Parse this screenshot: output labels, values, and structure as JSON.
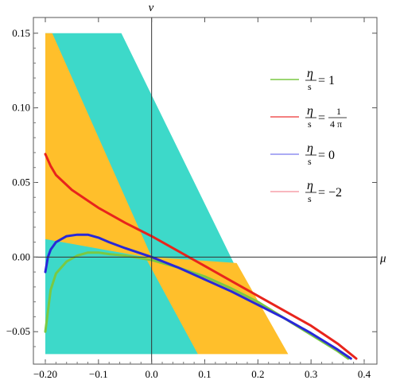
{
  "chart_data": {
    "type": "line",
    "xlabel": "μ",
    "ylabel": "ν",
    "xlim": [
      -0.2,
      0.4
    ],
    "ylim": [
      -0.068,
      0.152
    ],
    "x_ticks": [
      -0.2,
      -0.1,
      0.0,
      0.1,
      0.2,
      0.3,
      0.4
    ],
    "x_tick_labels": [
      "−0.20",
      "−0.1",
      "0.0",
      "0.1",
      "0.2",
      "0.3",
      "0.4"
    ],
    "y_ticks": [
      -0.05,
      0.0,
      0.05,
      0.1,
      0.15
    ],
    "y_tick_labels": [
      "−0.05",
      "0.00",
      "0.05",
      "0.10",
      "0.15"
    ],
    "grid": false,
    "legend_position": "right",
    "regions": [
      {
        "name": "cyan-region",
        "color": "#3dd9c9",
        "polygon": [
          [
            -0.2,
            0.15
          ],
          [
            -0.057,
            0.15
          ],
          [
            0.156,
            -0.005
          ],
          [
            0.152,
            -0.005
          ],
          [
            0.087,
            -0.065
          ],
          [
            -0.2,
            -0.065
          ]
        ]
      },
      {
        "name": "orange-region",
        "color": "#ffbf2b",
        "polygon": [
          [
            -0.2,
            0.15
          ],
          [
            -0.187,
            0.15
          ],
          [
            0.0,
            0.0
          ],
          [
            0.16,
            -0.004
          ],
          [
            0.257,
            -0.065
          ],
          [
            0.087,
            -0.065
          ],
          [
            -0.012,
            0.0
          ],
          [
            -0.2,
            0.012
          ]
        ]
      }
    ],
    "series": [
      {
        "name": "η/s = 1",
        "color": "#7ac943",
        "x": [
          -0.2,
          -0.19,
          -0.18,
          -0.16,
          -0.14,
          -0.12,
          -0.1,
          -0.08,
          -0.05,
          0.0,
          0.05,
          0.1,
          0.15,
          0.2,
          0.25,
          0.3,
          0.35,
          0.37
        ],
        "y": [
          -0.05,
          -0.022,
          -0.011,
          -0.003,
          0.001,
          0.003,
          0.003,
          0.002,
          0.001,
          -0.002,
          -0.007,
          -0.013,
          -0.021,
          -0.03,
          -0.041,
          -0.052,
          -0.063,
          -0.068
        ]
      },
      {
        "name": "η/s = 1/(4π)",
        "color": "#e8241c",
        "x": [
          -0.2,
          -0.19,
          -0.18,
          -0.15,
          -0.1,
          -0.05,
          0.0,
          0.05,
          0.1,
          0.15,
          0.2,
          0.25,
          0.3,
          0.35,
          0.385
        ],
        "y": [
          0.069,
          0.061,
          0.055,
          0.045,
          0.033,
          0.023,
          0.014,
          0.004,
          -0.006,
          -0.016,
          -0.026,
          -0.036,
          -0.046,
          -0.058,
          -0.068
        ]
      },
      {
        "name": "η/s = 0",
        "color": "#2828d8",
        "x": [
          -0.2,
          -0.195,
          -0.19,
          -0.18,
          -0.16,
          -0.14,
          -0.12,
          -0.1,
          -0.08,
          -0.05,
          0.0,
          0.05,
          0.1,
          0.15,
          0.2,
          0.25,
          0.3,
          0.35,
          0.375
        ],
        "y": [
          -0.01,
          0.0,
          0.005,
          0.01,
          0.014,
          0.015,
          0.015,
          0.013,
          0.01,
          0.006,
          0.0,
          -0.007,
          -0.015,
          -0.023,
          -0.032,
          -0.041,
          -0.051,
          -0.062,
          -0.068
        ]
      }
    ],
    "legend": [
      {
        "eta": "η",
        "s": "s",
        "eq": "=",
        "value": "1",
        "color": "#7ac943"
      },
      {
        "eta": "η",
        "s": "s",
        "eq": "=",
        "value_num": "1",
        "value_den": "4 π",
        "color": "#f05555"
      },
      {
        "eta": "η",
        "s": "s",
        "eq": "=",
        "value": "0",
        "color": "#8f8ff0"
      },
      {
        "eta": "η",
        "s": "s",
        "eq": "=",
        "value": "−2",
        "color": "#f7a0aa"
      }
    ]
  }
}
